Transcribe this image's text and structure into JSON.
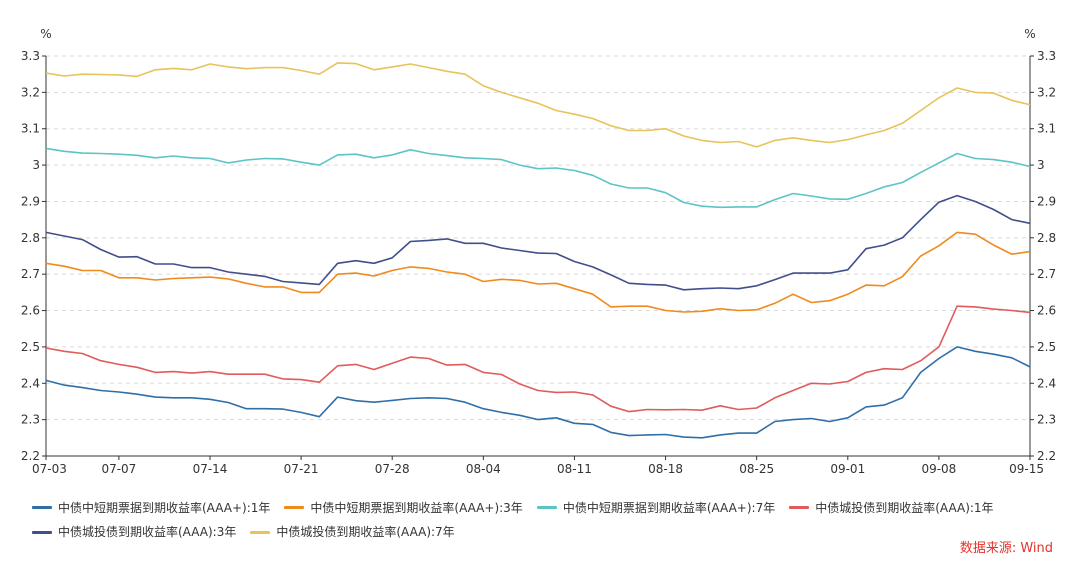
{
  "chart_data": {
    "type": "line",
    "unit_left": "%",
    "unit_right": "%",
    "ylim": [
      2.2,
      3.3
    ],
    "yticks": [
      "2.2",
      "2.3",
      "2.4",
      "2.5",
      "2.6",
      "2.7",
      "2.8",
      "2.9",
      "3",
      "3.1",
      "3.2",
      "3.3"
    ],
    "grid": true,
    "legend_position": "bottom",
    "x": [
      "07-03",
      "07-04",
      "07-05",
      "07-06",
      "07-07",
      "07-10",
      "07-11",
      "07-12",
      "07-13",
      "07-14",
      "07-17",
      "07-18",
      "07-19",
      "07-20",
      "07-21",
      "07-24",
      "07-25",
      "07-26",
      "07-27",
      "07-28",
      "07-31",
      "08-01",
      "08-02",
      "08-03",
      "08-04",
      "08-07",
      "08-08",
      "08-09",
      "08-10",
      "08-11",
      "08-14",
      "08-15",
      "08-16",
      "08-17",
      "08-18",
      "08-21",
      "08-22",
      "08-23",
      "08-24",
      "08-25",
      "08-28",
      "08-29",
      "08-30",
      "08-31",
      "09-01",
      "09-04",
      "09-05",
      "09-06",
      "09-07",
      "09-08",
      "09-11",
      "09-12",
      "09-13",
      "09-14",
      "09-15"
    ],
    "xtick_labels": [
      "07-03",
      "07-07",
      "07-14",
      "07-21",
      "07-28",
      "08-04",
      "08-11",
      "08-18",
      "08-25",
      "09-01",
      "09-08",
      "09-15"
    ],
    "series": [
      {
        "name": "中债中短期票据到期收益率(AAA+):1年",
        "color": "#2f6fa8",
        "values": [
          2.408,
          2.395,
          2.388,
          2.38,
          2.376,
          2.37,
          2.362,
          2.36,
          2.36,
          2.356,
          2.347,
          2.33,
          2.33,
          2.329,
          2.32,
          2.308,
          2.362,
          2.352,
          2.348,
          2.353,
          2.358,
          2.36,
          2.358,
          2.348,
          2.33,
          2.32,
          2.312,
          2.3,
          2.305,
          2.29,
          2.287,
          2.265,
          2.256,
          2.258,
          2.259,
          2.252,
          2.25,
          2.258,
          2.263,
          2.263,
          2.295,
          2.3,
          2.303,
          2.295,
          2.305,
          2.335,
          2.34,
          2.36,
          2.43,
          2.468,
          2.5,
          2.488,
          2.48,
          2.47,
          2.445
        ]
      },
      {
        "name": "中债中短期票据到期收益率(AAA+):3年",
        "color": "#f08a1c",
        "values": [
          2.73,
          2.722,
          2.71,
          2.71,
          2.69,
          2.69,
          2.684,
          2.688,
          2.69,
          2.692,
          2.687,
          2.675,
          2.665,
          2.665,
          2.65,
          2.65,
          2.7,
          2.703,
          2.695,
          2.71,
          2.72,
          2.716,
          2.706,
          2.7,
          2.68,
          2.686,
          2.683,
          2.673,
          2.675,
          2.66,
          2.645,
          2.61,
          2.612,
          2.612,
          2.6,
          2.596,
          2.598,
          2.605,
          2.6,
          2.602,
          2.62,
          2.645,
          2.622,
          2.627,
          2.645,
          2.67,
          2.668,
          2.693,
          2.75,
          2.778,
          2.815,
          2.81,
          2.78,
          2.755,
          2.762
        ]
      },
      {
        "name": "中债中短期票据到期收益率(AAA+):7年",
        "color": "#5cc4c4",
        "values": [
          3.046,
          3.038,
          3.033,
          3.032,
          3.03,
          3.027,
          3.02,
          3.025,
          3.02,
          3.018,
          3.006,
          3.014,
          3.018,
          3.017,
          3.008,
          3.0,
          3.028,
          3.03,
          3.02,
          3.028,
          3.042,
          3.032,
          3.026,
          3.02,
          3.018,
          3.015,
          3.0,
          2.99,
          2.992,
          2.985,
          2.972,
          2.948,
          2.937,
          2.937,
          2.924,
          2.897,
          2.887,
          2.884,
          2.885,
          2.885,
          2.905,
          2.922,
          2.915,
          2.907,
          2.906,
          2.922,
          2.94,
          2.952,
          2.98,
          3.006,
          3.032,
          3.018,
          3.015,
          3.008,
          2.996
        ]
      },
      {
        "name": "中债城投债到期收益率(AAA):1年",
        "color": "#e05b5b",
        "values": [
          2.497,
          2.488,
          2.482,
          2.462,
          2.452,
          2.444,
          2.43,
          2.432,
          2.428,
          2.432,
          2.425,
          2.425,
          2.425,
          2.412,
          2.41,
          2.403,
          2.448,
          2.452,
          2.438,
          2.455,
          2.472,
          2.468,
          2.45,
          2.452,
          2.43,
          2.424,
          2.398,
          2.38,
          2.375,
          2.376,
          2.368,
          2.337,
          2.322,
          2.328,
          2.327,
          2.328,
          2.326,
          2.338,
          2.328,
          2.332,
          2.36,
          2.38,
          2.4,
          2.398,
          2.405,
          2.43,
          2.44,
          2.438,
          2.462,
          2.5,
          2.612,
          2.61,
          2.604,
          2.6,
          2.595
        ]
      },
      {
        "name": "中债城投债到期收益率(AAA):3年",
        "color": "#404e8c",
        "values": [
          2.815,
          2.805,
          2.795,
          2.768,
          2.747,
          2.748,
          2.728,
          2.728,
          2.718,
          2.718,
          2.706,
          2.7,
          2.694,
          2.68,
          2.676,
          2.672,
          2.73,
          2.737,
          2.73,
          2.745,
          2.79,
          2.793,
          2.797,
          2.785,
          2.785,
          2.772,
          2.765,
          2.758,
          2.757,
          2.735,
          2.72,
          2.698,
          2.675,
          2.672,
          2.67,
          2.657,
          2.66,
          2.662,
          2.66,
          2.668,
          2.685,
          2.703,
          2.703,
          2.703,
          2.712,
          2.77,
          2.78,
          2.8,
          2.85,
          2.898,
          2.916,
          2.9,
          2.878,
          2.85,
          2.84
        ]
      },
      {
        "name": "中债城投债到期收益率(AAA):7年",
        "color": "#e8c35a",
        "values": [
          3.253,
          3.245,
          3.25,
          3.249,
          3.248,
          3.244,
          3.262,
          3.266,
          3.262,
          3.278,
          3.27,
          3.265,
          3.268,
          3.268,
          3.26,
          3.25,
          3.281,
          3.279,
          3.262,
          3.27,
          3.278,
          3.268,
          3.258,
          3.25,
          3.218,
          3.2,
          3.185,
          3.17,
          3.15,
          3.14,
          3.128,
          3.108,
          3.095,
          3.095,
          3.1,
          3.08,
          3.068,
          3.062,
          3.065,
          3.05,
          3.068,
          3.075,
          3.068,
          3.062,
          3.07,
          3.083,
          3.095,
          3.115,
          3.15,
          3.185,
          3.212,
          3.2,
          3.198,
          3.178,
          3.166
        ]
      }
    ]
  },
  "source": "数据来源: Wind"
}
